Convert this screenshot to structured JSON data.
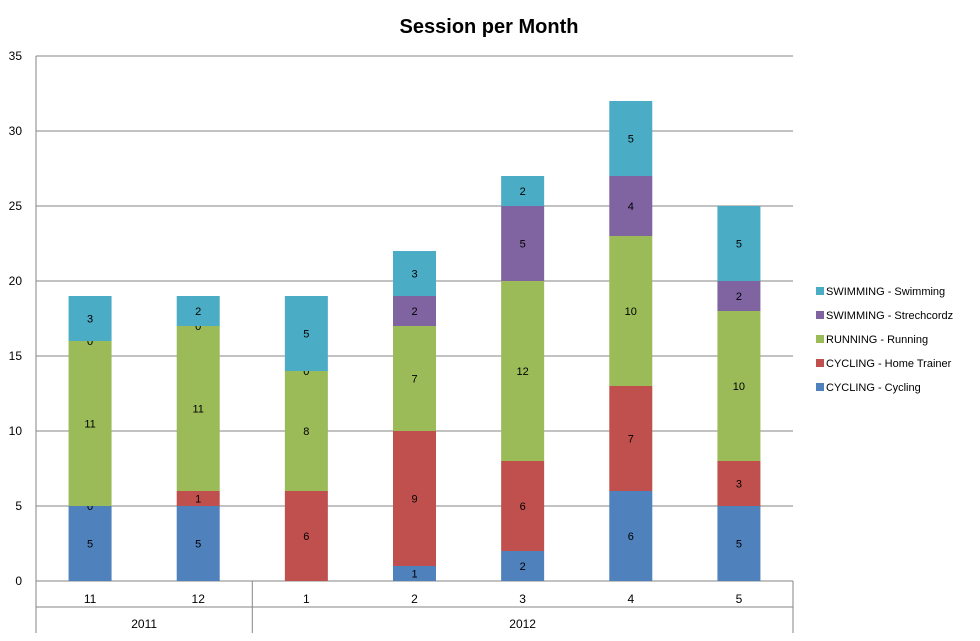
{
  "chart_data": {
    "type": "bar",
    "stacked": true,
    "title": "Session per Month",
    "xlabel": "",
    "ylabel": "",
    "ylim": [
      0,
      35
    ],
    "yticks": [
      0,
      5,
      10,
      15,
      20,
      25,
      30,
      35
    ],
    "grid": true,
    "legend_position": "right",
    "categories": [
      "11",
      "12",
      "1",
      "2",
      "3",
      "4",
      "5"
    ],
    "category_groups": [
      {
        "label": "2011",
        "count": 2
      },
      {
        "label": "2012",
        "count": 5
      }
    ],
    "series": [
      {
        "name": "CYCLING - Cycling",
        "color": "#4F81BD",
        "values": [
          5,
          5,
          null,
          1,
          2,
          6,
          5
        ],
        "labels": [
          "5",
          "5",
          "",
          "1",
          "2",
          "6",
          "5"
        ]
      },
      {
        "name": "CYCLING - Home Trainer",
        "color": "#C0504D",
        "values": [
          0,
          1,
          6,
          9,
          6,
          7,
          3
        ],
        "labels": [
          "0",
          "1",
          "6",
          "9",
          "6",
          "7",
          "3"
        ]
      },
      {
        "name": "RUNNING - Running",
        "color": "#9BBB59",
        "values": [
          11,
          11,
          8,
          7,
          12,
          10,
          10
        ],
        "labels": [
          "11",
          "11",
          "8",
          "7",
          "12",
          "10",
          "10"
        ]
      },
      {
        "name": "SWIMMING - Strechcordz",
        "color": "#8064A2",
        "values": [
          0,
          0,
          0,
          2,
          5,
          4,
          2
        ],
        "labels": [
          "0",
          "0",
          "0",
          "2",
          "5",
          "4",
          "2"
        ]
      },
      {
        "name": "SWIMMING - Swimming",
        "color": "#4BACC6",
        "values": [
          3,
          2,
          5,
          3,
          2,
          5,
          5
        ],
        "labels": [
          "3",
          "2",
          "5",
          "3",
          "2",
          "5",
          "5"
        ]
      }
    ]
  }
}
